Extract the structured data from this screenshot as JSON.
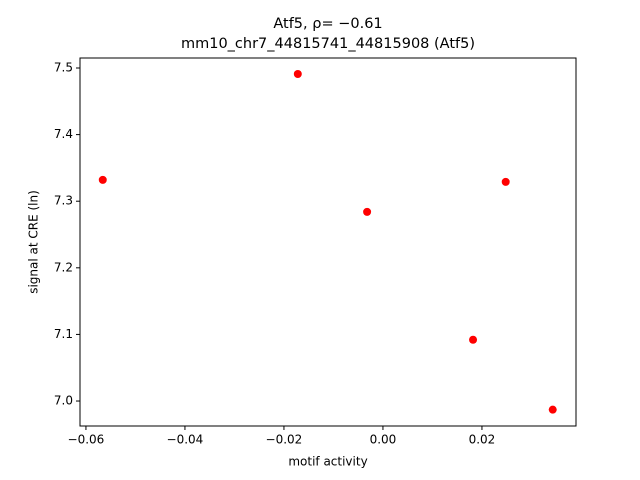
{
  "chart_data": {
    "type": "scatter",
    "title": "Atf5, ρ= −0.61",
    "subtitle": "mm10_chr7_44815741_44815908 (Atf5)",
    "x_label": "motif activity",
    "y_label": "signal at CRE (ln)",
    "x": [
      -0.0566,
      -0.0172,
      -0.0032,
      0.0182,
      0.0248,
      0.0343
    ],
    "values": [
      7.332,
      7.491,
      7.284,
      7.092,
      7.329,
      6.987
    ],
    "color": "#ff0000",
    "xlim": [
      -0.0612,
      0.039
    ],
    "ylim": [
      6.9625,
      7.515
    ],
    "xticks": [
      {
        "value": -0.06,
        "label": "−0.06"
      },
      {
        "value": -0.04,
        "label": "−0.04"
      },
      {
        "value": -0.02,
        "label": "−0.02"
      },
      {
        "value": 0,
        "label": "0.00"
      },
      {
        "value": 0.02,
        "label": "0.02"
      }
    ],
    "yticks": [
      {
        "value": 7.0,
        "label": "7.0"
      },
      7.1,
      7.2,
      7.3,
      7.4,
      7.5
    ],
    "grid": false
  }
}
